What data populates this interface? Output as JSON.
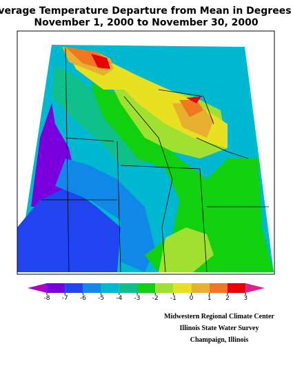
{
  "title": [
    "Average Temperature Departure from Mean in Degrees F",
    "November 1, 2000 to November 30, 2000"
  ],
  "legend": {
    "ticks": [
      -8,
      -7,
      -6,
      -5,
      -4,
      -3,
      -2,
      -1,
      0,
      1,
      2,
      3
    ],
    "colors": [
      "#b000c8",
      "#7a00e0",
      "#2044f0",
      "#1088e8",
      "#00b8d0",
      "#10c08a",
      "#10d010",
      "#a0e030",
      "#e8e020",
      "#e8b030",
      "#f07820",
      "#e80000",
      "#e0208c"
    ]
  },
  "credits": [
    "Midwestern Regional Climate Center",
    "Illinois State Water Survey",
    "Champaign, Illinois"
  ]
}
